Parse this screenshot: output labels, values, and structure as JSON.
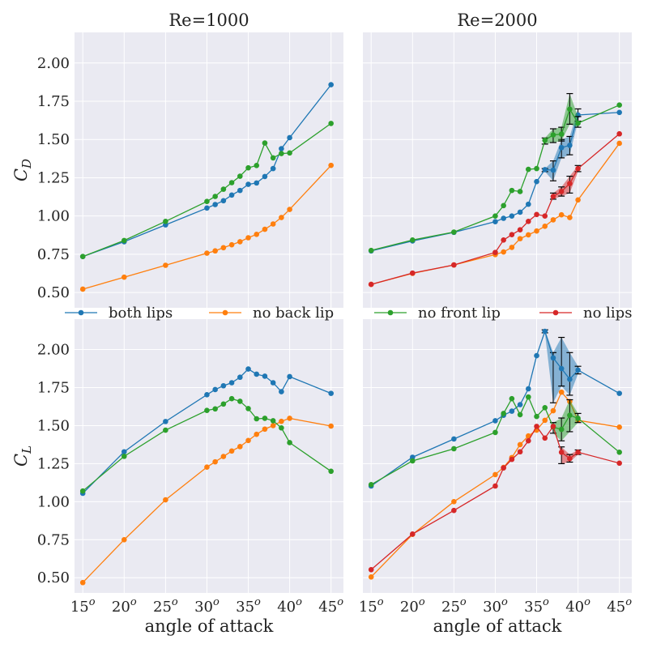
{
  "colors": {
    "both lips": "#1f77b4",
    "no back lip": "#ff7f0e",
    "no front lip": "#2ca02c",
    "no lips": "#d62728",
    "plot_bg": "#eaeaf2",
    "grid": "#ffffff"
  },
  "legend": {
    "placement": "between-rows",
    "entries": [
      "both lips",
      "no back lip",
      "no front lip",
      "no lips"
    ]
  },
  "chart_data": [
    {
      "id": "cd_re1000",
      "type": "line",
      "title": "Re=1000",
      "ylabel": "C",
      "ylabel_sub": "D",
      "xlabel": "",
      "xlim": [
        14,
        46.5
      ],
      "ylim": [
        0.4,
        2.2
      ],
      "yticks": [
        "0.50",
        "0.75",
        "1.00",
        "1.25",
        "1.50",
        "1.75",
        "2.00"
      ],
      "ytick_values": [
        0.5,
        0.75,
        1.0,
        1.25,
        1.5,
        1.75,
        2.0
      ],
      "xticks": [],
      "grid": true,
      "series": [
        {
          "name": "both lips",
          "x": [
            15,
            20,
            25,
            30,
            31,
            32,
            33,
            34,
            35,
            36,
            37,
            38,
            39,
            40,
            45
          ],
          "y": [
            0.735,
            0.832,
            0.942,
            1.052,
            1.075,
            1.1,
            1.137,
            1.167,
            1.207,
            1.216,
            1.258,
            1.31,
            1.44,
            1.512,
            1.858
          ]
        },
        {
          "name": "no back lip",
          "x": [
            15,
            20,
            25,
            30,
            31,
            32,
            33,
            34,
            35,
            36,
            37,
            38,
            39,
            40,
            45
          ],
          "y": [
            0.522,
            0.6,
            0.678,
            0.757,
            0.772,
            0.793,
            0.812,
            0.832,
            0.858,
            0.88,
            0.913,
            0.948,
            0.99,
            1.043,
            1.331
          ]
        },
        {
          "name": "no front lip",
          "x": [
            15,
            20,
            25,
            30,
            31,
            32,
            33,
            34,
            35,
            36,
            37,
            38,
            39,
            40,
            45
          ],
          "y": [
            0.735,
            0.84,
            0.965,
            1.095,
            1.128,
            1.175,
            1.218,
            1.26,
            1.315,
            1.33,
            1.477,
            1.38,
            1.408,
            1.412,
            1.605
          ]
        }
      ]
    },
    {
      "id": "cd_re2000",
      "type": "line",
      "title": "Re=2000",
      "ylabel": "",
      "xlabel": "",
      "xlim": [
        14,
        46.5
      ],
      "ylim": [
        0.4,
        2.2
      ],
      "yticks": [],
      "xticks": [],
      "grid": true,
      "series": [
        {
          "name": "both lips",
          "x": [
            15,
            20,
            25,
            30,
            31,
            32,
            33,
            34,
            35,
            36,
            37,
            38,
            39,
            40,
            45
          ],
          "y": [
            0.772,
            0.837,
            0.893,
            0.963,
            0.985,
            1.0,
            1.025,
            1.077,
            1.225,
            1.303,
            1.3,
            1.447,
            1.462,
            1.66,
            1.677
          ],
          "band_lo": [
            null,
            null,
            null,
            null,
            null,
            null,
            null,
            null,
            null,
            1.29,
            1.23,
            1.38,
            1.4,
            1.62,
            null
          ],
          "band_hi": [
            null,
            null,
            null,
            null,
            null,
            null,
            null,
            null,
            null,
            1.31,
            1.36,
            1.5,
            1.52,
            1.7,
            null
          ]
        },
        {
          "name": "no back lip",
          "x": [
            15,
            20,
            25,
            30,
            31,
            32,
            33,
            34,
            35,
            36,
            37,
            38,
            39,
            40,
            45
          ],
          "y": [
            0.553,
            0.625,
            0.68,
            0.748,
            0.765,
            0.795,
            0.852,
            0.877,
            0.902,
            0.933,
            0.975,
            1.008,
            0.99,
            1.105,
            1.475
          ]
        },
        {
          "name": "no front lip",
          "x": [
            15,
            20,
            25,
            30,
            31,
            32,
            33,
            34,
            35,
            36,
            37,
            38,
            39,
            40,
            45
          ],
          "y": [
            0.775,
            0.843,
            0.895,
            1.0,
            1.068,
            1.167,
            1.16,
            1.305,
            1.31,
            1.495,
            1.53,
            1.535,
            1.698,
            1.607,
            1.725
          ],
          "band_lo": [
            null,
            null,
            null,
            null,
            null,
            null,
            null,
            null,
            null,
            1.47,
            1.48,
            1.49,
            1.6,
            1.58,
            null
          ],
          "band_hi": [
            null,
            null,
            null,
            null,
            null,
            null,
            null,
            null,
            null,
            1.51,
            1.57,
            1.58,
            1.8,
            1.65,
            null
          ]
        },
        {
          "name": "no lips",
          "x": [
            15,
            20,
            25,
            30,
            31,
            32,
            33,
            34,
            35,
            36,
            37,
            38,
            39,
            40,
            45
          ],
          "y": [
            0.553,
            0.627,
            0.68,
            0.762,
            0.843,
            0.878,
            0.91,
            0.965,
            1.01,
            1.0,
            1.128,
            1.16,
            1.212,
            1.31,
            1.537
          ],
          "band_lo": [
            null,
            null,
            null,
            null,
            null,
            null,
            null,
            null,
            null,
            null,
            1.11,
            1.13,
            1.15,
            1.29,
            null
          ],
          "band_hi": [
            null,
            null,
            null,
            null,
            null,
            null,
            null,
            null,
            null,
            null,
            1.15,
            1.19,
            1.26,
            1.33,
            null
          ]
        }
      ]
    },
    {
      "id": "cl_re1000",
      "type": "line",
      "title": "",
      "ylabel": "C",
      "ylabel_sub": "L",
      "xlabel": "angle of attack",
      "xlim": [
        14,
        46.5
      ],
      "ylim": [
        0.4,
        2.2
      ],
      "yticks": [
        "0.50",
        "0.75",
        "1.00",
        "1.25",
        "1.50",
        "1.75",
        "2.00"
      ],
      "ytick_values": [
        0.5,
        0.75,
        1.0,
        1.25,
        1.5,
        1.75,
        2.0
      ],
      "xticks": [
        {
          "base": "15",
          "sup": "o"
        },
        {
          "base": "20",
          "sup": "o"
        },
        {
          "base": "25",
          "sup": "o"
        },
        {
          "base": "30",
          "sup": "o"
        },
        {
          "base": "35",
          "sup": "o"
        },
        {
          "base": "40",
          "sup": "o"
        },
        {
          "base": "45",
          "sup": "o"
        }
      ],
      "xtick_values": [
        15,
        20,
        25,
        30,
        35,
        40,
        45
      ],
      "grid": true,
      "series": [
        {
          "name": "both lips",
          "x": [
            15,
            20,
            25,
            30,
            31,
            32,
            33,
            34,
            35,
            36,
            37,
            38,
            39,
            40,
            45
          ],
          "y": [
            1.055,
            1.328,
            1.527,
            1.703,
            1.737,
            1.762,
            1.782,
            1.818,
            1.872,
            1.838,
            1.825,
            1.782,
            1.723,
            1.822,
            1.712
          ]
        },
        {
          "name": "no back lip",
          "x": [
            15,
            20,
            25,
            30,
            31,
            32,
            33,
            34,
            35,
            36,
            37,
            38,
            39,
            40,
            45
          ],
          "y": [
            0.468,
            0.75,
            1.012,
            1.227,
            1.262,
            1.297,
            1.333,
            1.362,
            1.402,
            1.443,
            1.477,
            1.5,
            1.528,
            1.548,
            1.497
          ]
        },
        {
          "name": "no front lip",
          "x": [
            15,
            20,
            25,
            30,
            31,
            32,
            33,
            34,
            35,
            36,
            37,
            38,
            39,
            40,
            45
          ],
          "y": [
            1.07,
            1.298,
            1.47,
            1.6,
            1.61,
            1.642,
            1.677,
            1.66,
            1.612,
            1.545,
            1.548,
            1.532,
            1.485,
            1.388,
            1.2
          ]
        }
      ]
    },
    {
      "id": "cl_re2000",
      "type": "line",
      "title": "",
      "ylabel": "",
      "xlabel": "angle of attack",
      "xlim": [
        14,
        46.5
      ],
      "ylim": [
        0.4,
        2.2
      ],
      "yticks": [],
      "xticks": [
        {
          "base": "15",
          "sup": "o"
        },
        {
          "base": "20",
          "sup": "o"
        },
        {
          "base": "25",
          "sup": "o"
        },
        {
          "base": "30",
          "sup": "o"
        },
        {
          "base": "35",
          "sup": "o"
        },
        {
          "base": "40",
          "sup": "o"
        },
        {
          "base": "45",
          "sup": "o"
        }
      ],
      "xtick_values": [
        15,
        20,
        25,
        30,
        35,
        40,
        45
      ],
      "grid": true,
      "series": [
        {
          "name": "both lips",
          "x": [
            15,
            20,
            25,
            30,
            31,
            32,
            33,
            34,
            35,
            36,
            37,
            38,
            39,
            40,
            45
          ],
          "y": [
            1.103,
            1.292,
            1.412,
            1.532,
            1.568,
            1.595,
            1.638,
            1.742,
            1.96,
            2.12,
            1.945,
            1.875,
            1.805,
            1.865,
            1.712
          ],
          "band_lo": [
            null,
            null,
            null,
            null,
            null,
            null,
            null,
            null,
            null,
            2.11,
            1.65,
            1.76,
            1.7,
            1.84,
            null
          ],
          "band_hi": [
            null,
            null,
            null,
            null,
            null,
            null,
            null,
            null,
            null,
            2.13,
            1.98,
            2.08,
            1.98,
            1.89,
            null
          ]
        },
        {
          "name": "no back lip",
          "x": [
            15,
            20,
            25,
            30,
            31,
            32,
            33,
            34,
            35,
            36,
            37,
            38,
            39,
            40,
            45
          ],
          "y": [
            0.505,
            0.785,
            1.0,
            1.178,
            1.225,
            1.29,
            1.375,
            1.432,
            1.47,
            1.535,
            1.598,
            1.72,
            1.658,
            1.535,
            1.49
          ]
        },
        {
          "name": "no front lip",
          "x": [
            15,
            20,
            25,
            30,
            31,
            32,
            33,
            34,
            35,
            36,
            37,
            38,
            39,
            40,
            45
          ],
          "y": [
            1.112,
            1.268,
            1.348,
            1.455,
            1.58,
            1.677,
            1.572,
            1.688,
            1.56,
            1.618,
            1.49,
            1.475,
            1.568,
            1.548,
            1.325
          ],
          "band_lo": [
            null,
            null,
            null,
            null,
            null,
            null,
            null,
            null,
            null,
            null,
            1.45,
            1.4,
            1.46,
            1.52,
            null
          ],
          "band_hi": [
            null,
            null,
            null,
            null,
            null,
            null,
            null,
            null,
            null,
            null,
            1.52,
            1.55,
            1.67,
            1.58,
            null
          ]
        },
        {
          "name": "no lips",
          "x": [
            15,
            20,
            25,
            30,
            31,
            32,
            33,
            34,
            35,
            36,
            37,
            38,
            39,
            40,
            45
          ],
          "y": [
            0.553,
            0.787,
            0.942,
            1.103,
            1.222,
            1.278,
            1.328,
            1.4,
            1.495,
            1.418,
            1.495,
            1.325,
            1.283,
            1.325,
            1.253
          ],
          "band_lo": [
            null,
            null,
            null,
            null,
            null,
            null,
            null,
            null,
            null,
            null,
            null,
            1.25,
            1.26,
            1.31,
            null
          ],
          "band_hi": [
            null,
            null,
            null,
            null,
            null,
            null,
            null,
            null,
            null,
            null,
            null,
            1.36,
            1.31,
            1.34,
            null
          ]
        }
      ]
    }
  ]
}
